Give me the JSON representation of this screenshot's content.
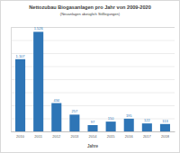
{
  "chart_data": {
    "type": "bar",
    "title": "Nettozubau Biogasanlagen pro Jahr von 2009-2020",
    "subtitle": "(Neuanlagen abzüglich Stilllegungen)",
    "x_label": "Jahre",
    "categories": [
      "2010",
      "2011",
      "2012",
      "2013",
      "2014",
      "2015",
      "2016",
      "2017",
      "2018"
    ],
    "values": [
      1107,
      1526,
      434,
      257,
      97,
      150,
      195,
      122,
      113
    ],
    "value_labels": [
      "1.107",
      "1.526",
      "434",
      "257",
      "97",
      "150",
      "195",
      "122",
      "113"
    ],
    "color": "#2e75b6",
    "ylim": [
      0,
      1600
    ],
    "yticks": [
      0,
      200,
      400,
      600,
      800,
      1000,
      1200,
      1400,
      1600
    ],
    "grid": true,
    "data_labels": true,
    "tick_labels": "x"
  }
}
